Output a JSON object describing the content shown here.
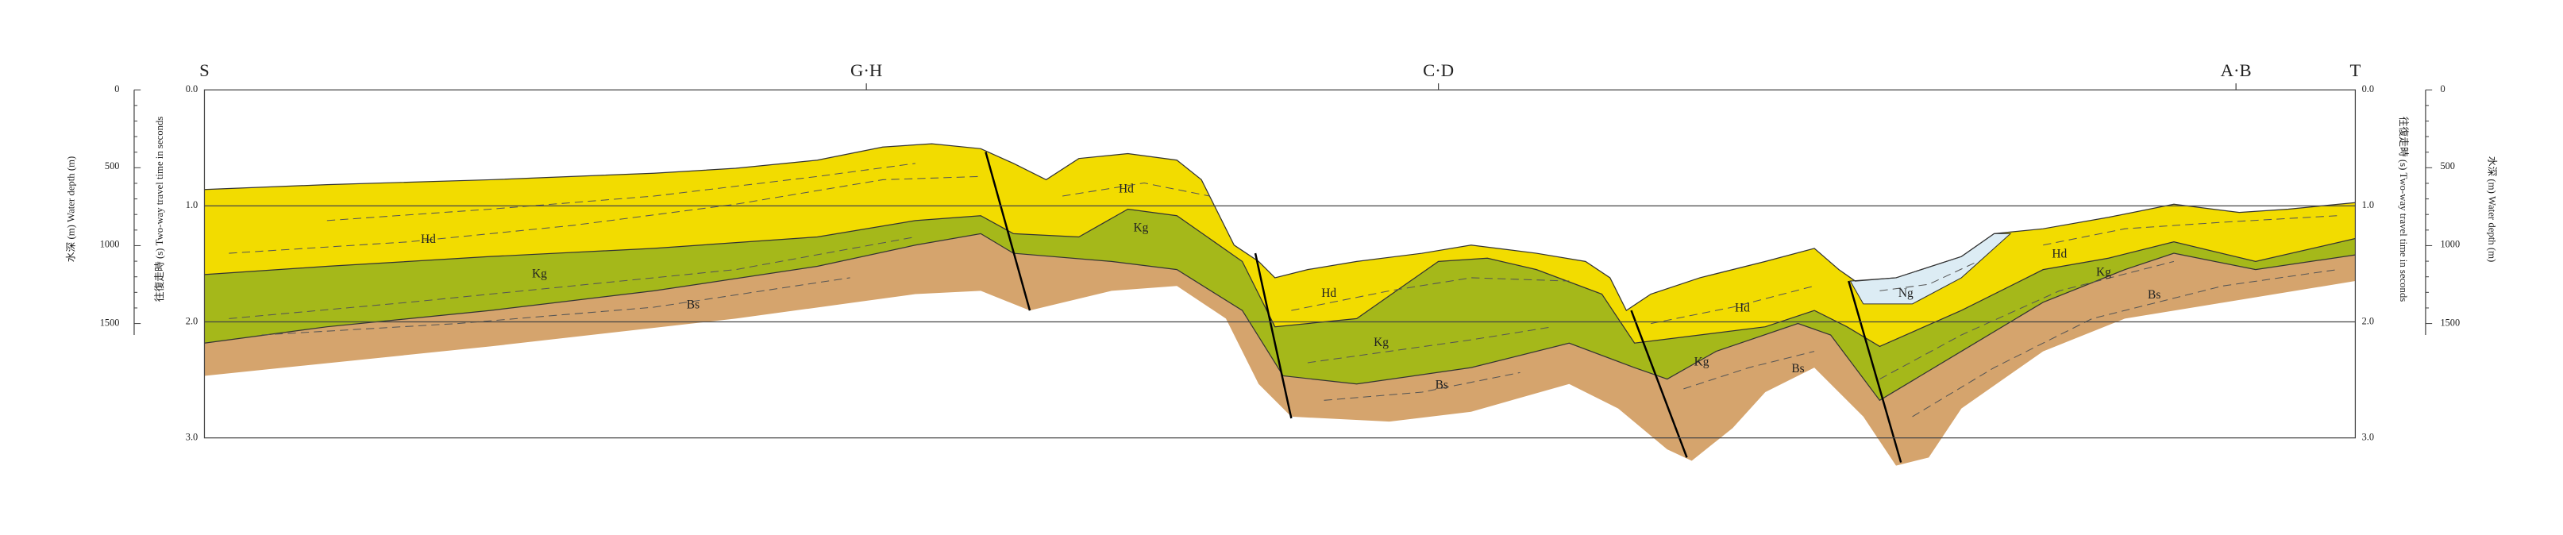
{
  "stations": [
    "S",
    "G·H",
    "C·D",
    "A·B",
    "T"
  ],
  "axes": {
    "depth_label": "水深 (m)  Water depth (m)",
    "time_label": "往復走時 (s)  Two-way travel time in seconds",
    "depth_ticks": [
      "0",
      "500",
      "1000",
      "1500"
    ],
    "time_ticks": [
      "0.0",
      "1.0",
      "2.0",
      "3.0"
    ]
  },
  "units": [
    "Hd",
    "Kg",
    "Bs",
    "Hd",
    "Kg",
    "Hd",
    "Kg",
    "Bs",
    "Hd",
    "Kg",
    "Bs",
    "Ng",
    "Hd",
    "Kg",
    "Bs"
  ]
}
